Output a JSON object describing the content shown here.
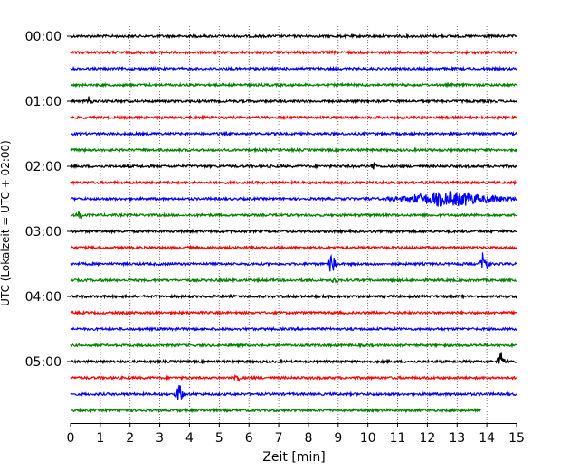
{
  "chart_data": {
    "type": "line",
    "title": "",
    "xlabel": "Zeit  [min]",
    "ylabel": "UTC (Lokalzeit = UTC + 02:00)",
    "xlim": [
      0,
      15
    ],
    "x_ticks": [
      0,
      1,
      2,
      3,
      4,
      5,
      6,
      7,
      8,
      9,
      10,
      11,
      12,
      13,
      14,
      15
    ],
    "y_tick_labels": [
      "00:00",
      "01:00",
      "02:00",
      "03:00",
      "04:00",
      "05:00"
    ],
    "grid": "vertical dotted",
    "trace_interval_min": 15,
    "trace_count": 24,
    "trace_colors": [
      "#000000",
      "#ff0000",
      "#0000ff",
      "#008000"
    ],
    "last_trace_end_min": 13.8,
    "events": [
      {
        "trace": 4,
        "x": 0.6,
        "amp": 0.8
      },
      {
        "trace": 10,
        "x": 12.8,
        "amp": 0.9,
        "duration": 3.5
      },
      {
        "trace": 11,
        "x": 0.3,
        "amp": 0.6
      },
      {
        "trace": 14,
        "x": 8.8,
        "amp": 1.6
      },
      {
        "trace": 14,
        "x": 13.9,
        "amp": 1.8
      },
      {
        "trace": 20,
        "x": 14.5,
        "amp": 1.4
      },
      {
        "trace": 22,
        "x": 3.65,
        "amp": 1.2
      },
      {
        "trace": 8,
        "x": 10.2,
        "amp": 0.5
      },
      {
        "trace": 15,
        "x": 8.9,
        "amp": 0.5
      },
      {
        "trace": 21,
        "x": 5.6,
        "amp": 0.5
      }
    ]
  }
}
